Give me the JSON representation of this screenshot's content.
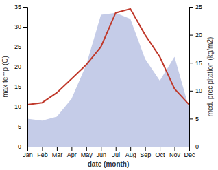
{
  "chart_data": {
    "type": "line",
    "categories": [
      "Jan",
      "Feb",
      "Mar",
      "Apr",
      "May",
      "Jun",
      "Jul",
      "Aug",
      "Sep",
      "Oct",
      "Nov",
      "Dec"
    ],
    "series": [
      {
        "type": "area",
        "color": "#c5cce8",
        "values": [
          7.0,
          6.5,
          7.5,
          12.0,
          20.5,
          33.0,
          33.5,
          32.0,
          22.0,
          16.5,
          22.5,
          9.5
        ]
      },
      {
        "type": "line",
        "color": "#c0392b",
        "values": [
          10.5,
          11.0,
          13.5,
          17.0,
          20.5,
          25.0,
          33.5,
          34.5,
          28.0,
          22.5,
          14.5,
          10.5
        ]
      }
    ],
    "xlabel": "date (month)",
    "ylabel": "max temp (C)",
    "y2label": "med. precipitation (kg/m2)",
    "ylim": [
      0,
      35
    ],
    "yticks": [
      0,
      5,
      10,
      15,
      20,
      25,
      30,
      35
    ],
    "y2lim": [
      0,
      25
    ],
    "y2ticks": [
      0,
      5,
      10,
      15,
      20,
      25
    ],
    "grid": false
  }
}
